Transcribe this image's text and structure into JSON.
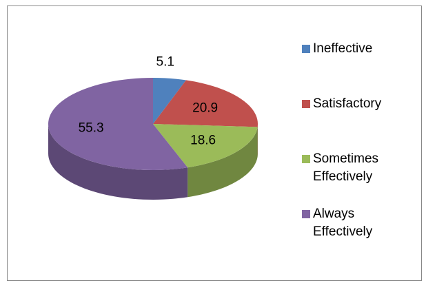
{
  "chart_data": {
    "type": "pie",
    "categories": [
      "Ineffective",
      "Satisfactory",
      "Sometimes Effectively",
      "Always Effectively"
    ],
    "values": [
      5.1,
      20.9,
      18.6,
      55.3
    ],
    "colors": [
      "#4f81bd",
      "#c0504d",
      "#9bbb59",
      "#8064a2"
    ],
    "legend": "right"
  }
}
